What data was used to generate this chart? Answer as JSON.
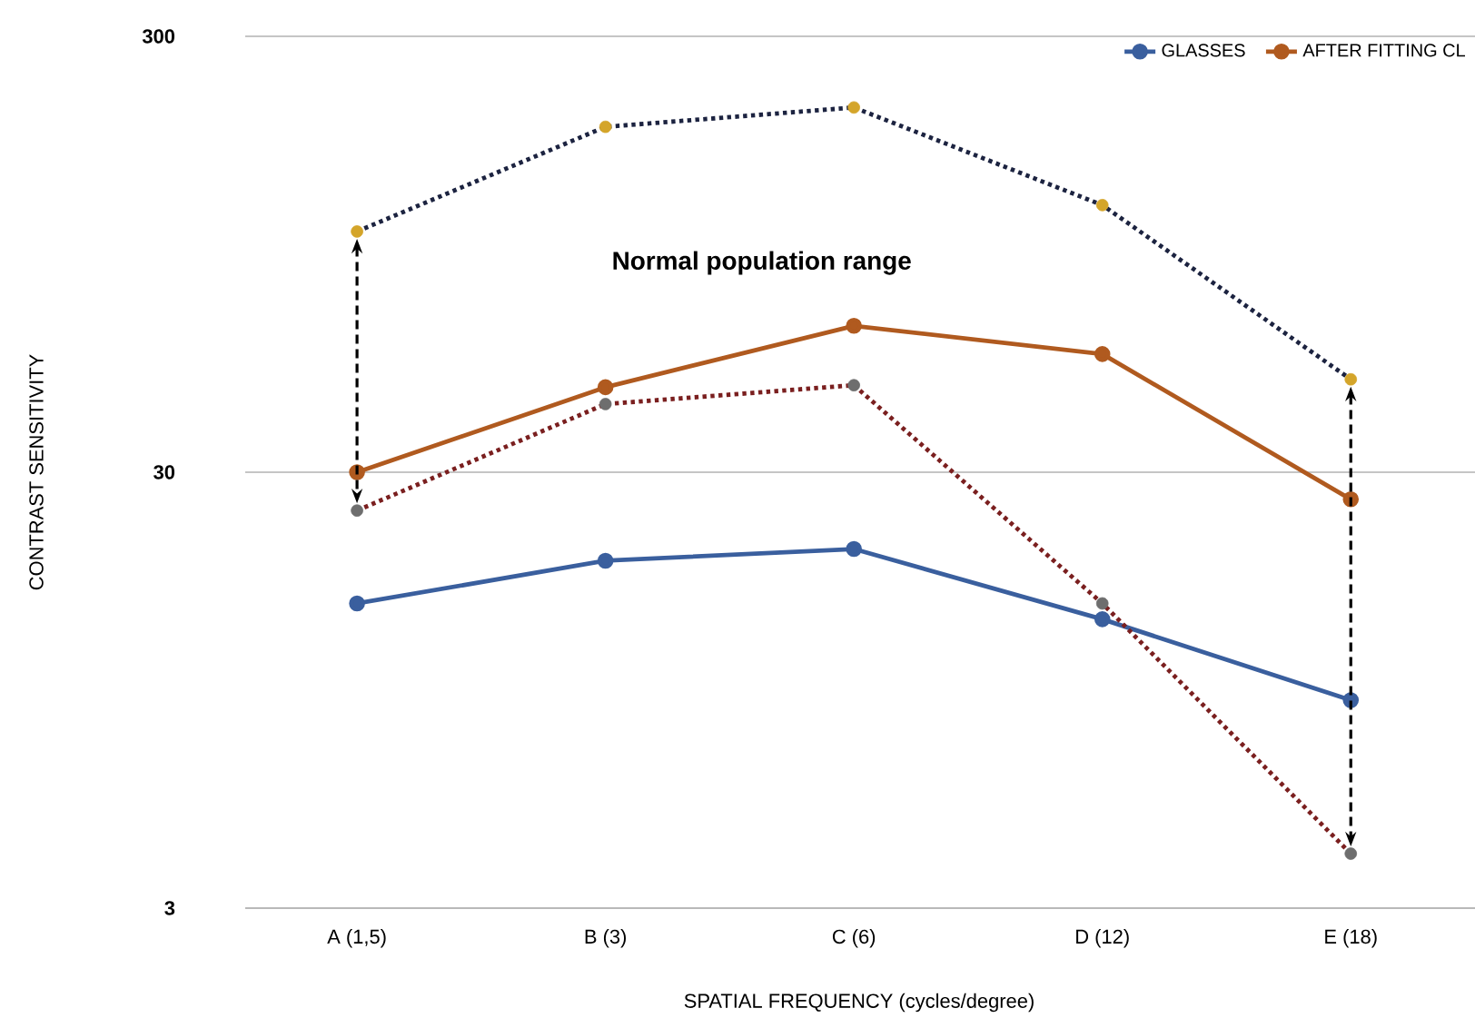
{
  "chart_data": {
    "type": "line",
    "xlabel": "SPATIAL FREQUENCY (cycles/degree)",
    "ylabel": "CONTRAST SENSITIVITY",
    "categories": [
      "A (1,5)",
      "B (3)",
      "C (6)",
      "D (12)",
      "E (18)"
    ],
    "log": "y",
    "ylim": [
      3,
      300
    ],
    "yticks": [
      3,
      30,
      300
    ],
    "grid": "y",
    "legend": "top right",
    "marker": "circle",
    "line_style": "solid",
    "annotations": [
      "Normal population range"
    ],
    "series": [
      {
        "name": "GLASSES",
        "color": "#3a5f9e",
        "values": [
          15,
          18.8,
          20,
          13.8,
          9
        ]
      },
      {
        "name": "AFTER FITTING CL",
        "color": "#b05a1f",
        "values": [
          30,
          47,
          65,
          56,
          26
        ]
      },
      {
        "color": "#1c2340",
        "line_style": "dotted",
        "values": [
          107,
          186,
          206,
          123,
          49
        ],
        "colors": [
          "#d4a52a",
          "#d4a52a",
          "#d4a52a",
          "#d4a52a",
          "#d4a52a"
        ]
      },
      {
        "color": "#7a1f1f",
        "line_style": "dotted",
        "values": [
          24.5,
          43,
          47.5,
          15,
          4
        ],
        "colors": [
          "#6e6e6e",
          "#6e6e6e",
          "#6e6e6e",
          "#6e6e6e",
          "#6e6e6e"
        ]
      }
    ]
  }
}
